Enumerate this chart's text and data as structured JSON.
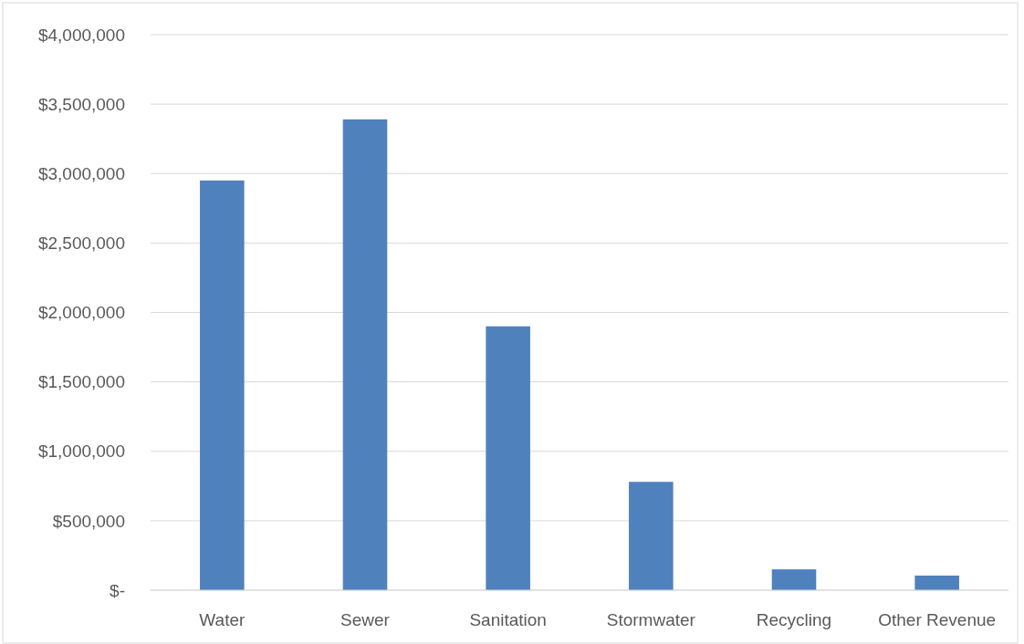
{
  "chart_data": {
    "type": "bar",
    "categories": [
      "Water",
      "Sewer",
      "Sanitation",
      "Stormwater",
      "Recycling",
      "Other Revenue"
    ],
    "values": [
      2950000,
      3390000,
      1900000,
      780000,
      150000,
      105000
    ],
    "color": "#4f81bd",
    "ylim": [
      0,
      4000000
    ],
    "yticks": [
      {
        "value": 0,
        "label": "$-"
      },
      {
        "value": 500000,
        "label": "$500,000"
      },
      {
        "value": 1000000,
        "label": "$1,000,000"
      },
      {
        "value": 1500000,
        "label": "$1,500,000"
      },
      {
        "value": 2000000,
        "label": "$2,000,000"
      },
      {
        "value": 2500000,
        "label": "$2,500,000"
      },
      {
        "value": 3000000,
        "label": "$3,000,000"
      },
      {
        "value": 3500000,
        "label": "$3,500,000"
      },
      {
        "value": 4000000,
        "label": "$4,000,000"
      }
    ],
    "grid": "y"
  }
}
